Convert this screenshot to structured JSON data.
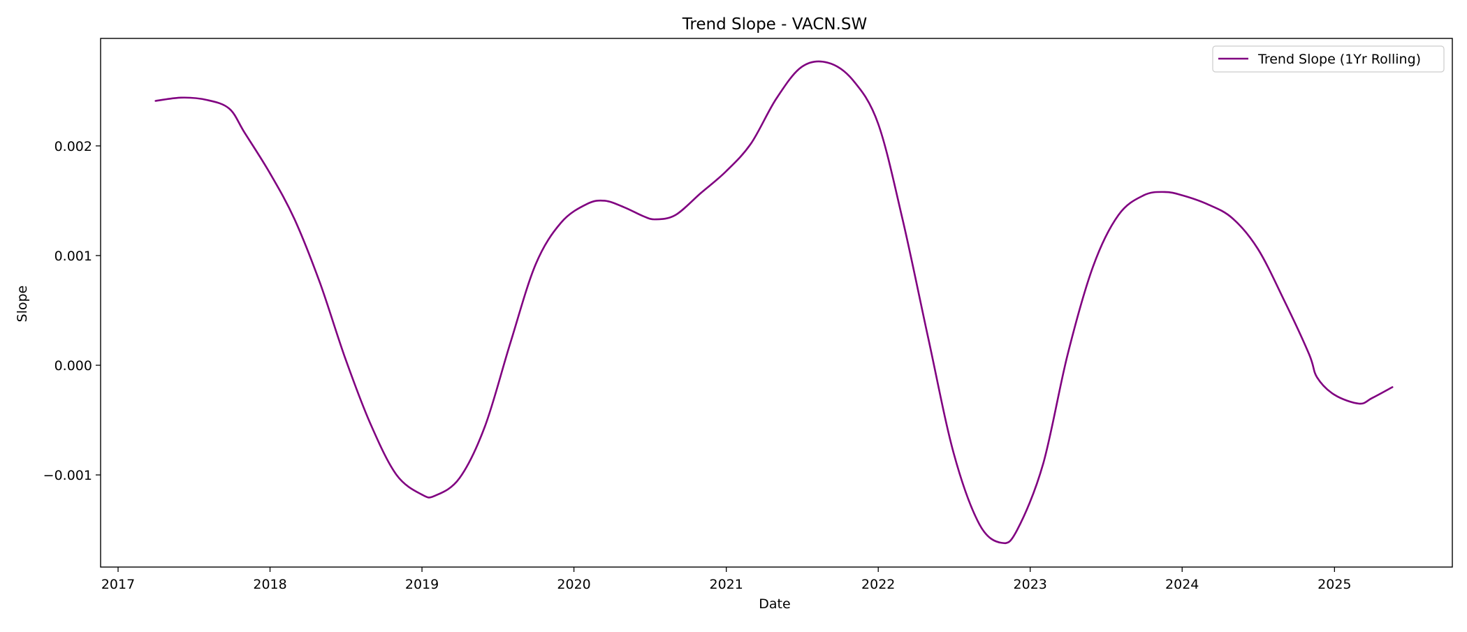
{
  "chart_data": {
    "type": "line",
    "title": "Trend Slope - VACN.SW",
    "xlabel": "Date",
    "ylabel": "Slope",
    "x_ticks": [
      "2017",
      "2018",
      "2019",
      "2020",
      "2021",
      "2022",
      "2023",
      "2024",
      "2025"
    ],
    "y_ticks": [
      -0.001,
      0.0,
      0.001,
      0.002
    ],
    "y_tick_labels": [
      "−0.001",
      "0.000",
      "0.001",
      "0.002"
    ],
    "xlim": [
      "2016-11-20",
      "2025-10-11"
    ],
    "ylim": [
      -0.00184,
      0.00298
    ],
    "grid": false,
    "legend_position": "top-right",
    "series": [
      {
        "name": "Trend Slope (1Yr Rolling)",
        "color": "#800080",
        "points": [
          [
            "2017-04-01",
            0.00241
          ],
          [
            "2017-06-01",
            0.00244
          ],
          [
            "2017-08-01",
            0.00242
          ],
          [
            "2017-09-25",
            0.00234
          ],
          [
            "2017-11-01",
            0.00212
          ],
          [
            "2018-01-01",
            0.00175
          ],
          [
            "2018-03-01",
            0.00133
          ],
          [
            "2018-05-01",
            0.00075
          ],
          [
            "2018-07-01",
            6e-05
          ],
          [
            "2018-09-01",
            -0.00055
          ],
          [
            "2018-11-01",
            -0.001
          ],
          [
            "2019-01-01",
            -0.00118
          ],
          [
            "2019-02-01",
            -0.00119
          ],
          [
            "2019-04-01",
            -0.00103
          ],
          [
            "2019-06-01",
            -0.00056
          ],
          [
            "2019-08-01",
            0.0002
          ],
          [
            "2019-10-01",
            0.00092
          ],
          [
            "2019-12-01",
            0.0013
          ],
          [
            "2020-02-01",
            0.00147
          ],
          [
            "2020-03-15",
            0.0015
          ],
          [
            "2020-05-01",
            0.00144
          ],
          [
            "2020-06-15",
            0.00136
          ],
          [
            "2020-07-15",
            0.00133
          ],
          [
            "2020-09-01",
            0.00137
          ],
          [
            "2020-11-01",
            0.00157
          ],
          [
            "2021-01-01",
            0.00177
          ],
          [
            "2021-03-01",
            0.00202
          ],
          [
            "2021-05-01",
            0.00243
          ],
          [
            "2021-07-01",
            0.00272
          ],
          [
            "2021-09-01",
            0.00276
          ],
          [
            "2021-11-01",
            0.0026
          ],
          [
            "2022-01-01",
            0.0022
          ],
          [
            "2022-03-01",
            0.00132
          ],
          [
            "2022-05-01",
            0.00025
          ],
          [
            "2022-07-01",
            -0.0008
          ],
          [
            "2022-09-01",
            -0.00145
          ],
          [
            "2022-10-25",
            -0.00162
          ],
          [
            "2022-12-01",
            -0.0015
          ],
          [
            "2023-02-01",
            -0.0009
          ],
          [
            "2023-04-01",
            0.0001
          ],
          [
            "2023-06-01",
            0.0009
          ],
          [
            "2023-08-01",
            0.00137
          ],
          [
            "2023-10-01",
            0.00155
          ],
          [
            "2023-11-20",
            0.00158
          ],
          [
            "2024-01-01",
            0.00155
          ],
          [
            "2024-03-01",
            0.00147
          ],
          [
            "2024-05-01",
            0.00134
          ],
          [
            "2024-07-01",
            0.00106
          ],
          [
            "2024-09-01",
            0.0006
          ],
          [
            "2024-11-01",
            0.0001
          ],
          [
            "2024-11-20",
            -0.00011
          ],
          [
            "2025-01-01",
            -0.00027
          ],
          [
            "2025-03-01",
            -0.00035
          ],
          [
            "2025-04-01",
            -0.0003
          ],
          [
            "2025-05-20",
            -0.0002
          ]
        ]
      }
    ]
  }
}
